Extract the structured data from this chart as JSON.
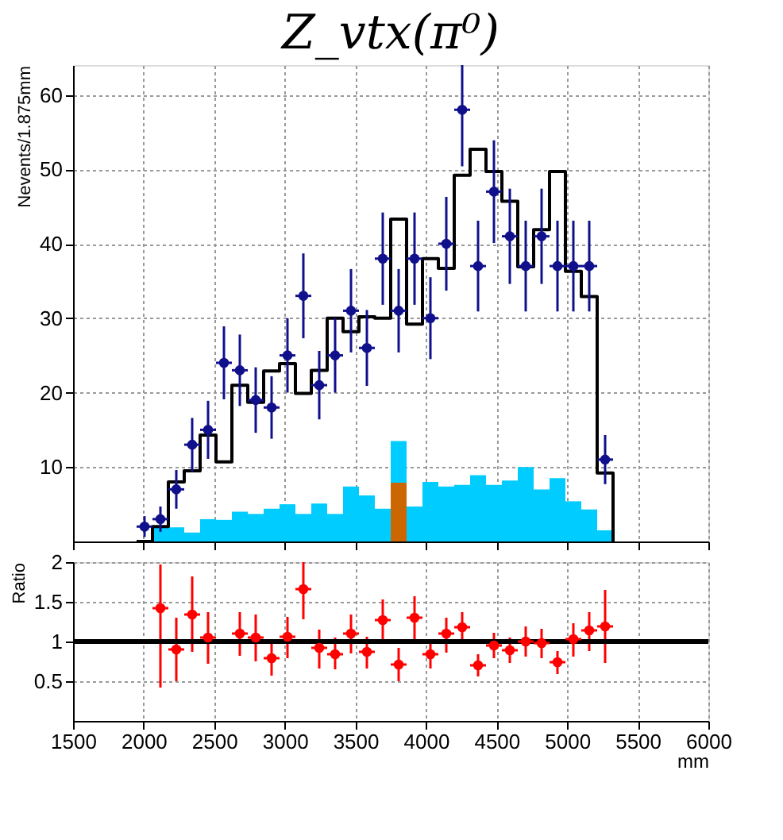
{
  "chart_data": [
    {
      "type": "bar",
      "title": "Z_vtx(π⁰)",
      "ylabel": "Nevents/1.875mm",
      "xlim": [
        1500,
        6000
      ],
      "xticks": [
        1500,
        2000,
        2500,
        3000,
        3500,
        4000,
        4500,
        5000,
        5500,
        6000
      ],
      "ylim": [
        0,
        64
      ],
      "yticks": [
        10,
        20,
        30,
        40,
        50,
        60
      ],
      "grid": true,
      "tick_labels": "y",
      "series": [
        {
          "type": "bar",
          "color": "#cc6600",
          "x": [
            3806.25
          ],
          "values": [
            7.9
          ]
        },
        {
          "type": "bar",
          "color": "#00ccff",
          "base": [
            0,
            0,
            0,
            0,
            0,
            0,
            0,
            0,
            0,
            0,
            0,
            0,
            0,
            0,
            0,
            7.9,
            0,
            0,
            0,
            0,
            0,
            0,
            0,
            0,
            0,
            0,
            0,
            0,
            0
          ],
          "x": [
            2118.75,
            2231.25,
            2343.75,
            2456.25,
            2568.75,
            2681.25,
            2793.75,
            2906.25,
            3018.75,
            3131.25,
            3243.75,
            3356.25,
            3468.75,
            3581.25,
            3693.75,
            3806.25,
            3918.75,
            4031.25,
            4143.75,
            4256.25,
            4368.75,
            4481.25,
            4593.75,
            4706.25,
            4818.75,
            4931.25,
            5043.75,
            5156.25,
            5268.75
          ],
          "values": [
            1.9,
            1.9,
            1.2,
            3.0,
            2.9,
            4.0,
            3.7,
            4.4,
            5.0,
            3.7,
            5.1,
            3.7,
            7.4,
            6.2,
            4.4,
            5.6,
            4.7,
            8.0,
            7.4,
            7.6,
            8.9,
            7.6,
            8.2,
            10.0,
            7.0,
            8.5,
            5.4,
            4.3,
            1.5
          ]
        },
        {
          "type": "step",
          "color": "#000000",
          "x": [
            1950,
            2062.5,
            2175,
            2287.5,
            2400,
            2512.5,
            2625,
            2737.5,
            2850,
            2962.5,
            3075,
            3187.5,
            3300,
            3412.5,
            3525,
            3637.5,
            3750,
            3862.5,
            3975,
            4087.5,
            4200,
            4312.5,
            4425,
            4537.5,
            4650,
            4762.5,
            4875,
            4987.5,
            5100,
            5212.5,
            5325
          ],
          "values": [
            0,
            2,
            8,
            9.5,
            14.3,
            10.7,
            21,
            18.7,
            22.9,
            23.9,
            19.9,
            23,
            30,
            28.2,
            30.2,
            30,
            43.3,
            29.2,
            38,
            36.7,
            49.2,
            52.7,
            49.7,
            45.7,
            36.9,
            41.9,
            49.7,
            36.3,
            32.9,
            9.2,
            0
          ]
        },
        {
          "type": "scatter",
          "color": "#10108c",
          "marker": "circle",
          "x": [
            2006.25,
            2118.75,
            2231.25,
            2343.75,
            2456.25,
            2568.75,
            2681.25,
            2793.75,
            2906.25,
            3018.75,
            3131.25,
            3243.75,
            3356.25,
            3468.75,
            3581.25,
            3693.75,
            3806.25,
            3918.75,
            4031.25,
            4143.75,
            4256.25,
            4368.75,
            4481.25,
            4593.75,
            4706.25,
            4818.75,
            4931.25,
            5043.75,
            5156.25,
            5268.75
          ],
          "values": [
            2,
            3,
            7,
            13,
            15,
            24,
            23,
            19,
            18,
            25,
            33,
            21,
            25,
            31,
            26,
            38,
            31,
            38,
            30,
            40,
            58,
            37,
            47,
            41,
            37,
            41,
            37,
            37,
            37,
            11
          ],
          "errors": [
            1.4,
            1.7,
            2.6,
            3.6,
            3.9,
            4.9,
            4.8,
            4.4,
            4.2,
            5,
            5.7,
            4.6,
            5,
            5.6,
            5.1,
            6.2,
            5.6,
            6.2,
            5.5,
            6.3,
            [
              50.4,
              64
            ],
            6.1,
            6.9,
            6.4,
            6.1,
            6.4,
            6.1,
            6.1,
            6.1,
            3.3
          ],
          "xerrors": [
            56.25,
            56.25,
            56.25,
            56.25,
            56.25,
            56.25,
            56.25,
            56.25,
            56.25,
            56.25,
            56.25,
            56.25,
            56.25,
            56.25,
            56.25,
            56.25,
            56.25,
            56.25,
            56.25,
            56.25,
            56.25,
            56.25,
            56.25,
            56.25,
            56.25,
            56.25,
            56.25,
            56.25,
            56.25,
            56.25
          ]
        }
      ]
    },
    {
      "type": "scatter",
      "xlabel": "mm",
      "ylabel": "Ratio",
      "xlim": [
        1500,
        6000
      ],
      "xticks": [
        1500,
        2000,
        2500,
        3000,
        3500,
        4000,
        4500,
        5000,
        5500,
        6000
      ],
      "ylim": [
        0,
        2
      ],
      "yticks": [
        0.5,
        1,
        1.5,
        2
      ],
      "grid": true,
      "marker": "circle",
      "ref_lines": [
        {
          "axis": "y",
          "value": 1,
          "color": "#000000"
        }
      ],
      "series": [
        {
          "color": "#ff0000",
          "x": [
            2118.75,
            2231.25,
            2343.75,
            2456.25,
            2681.25,
            2793.75,
            2906.25,
            3018.75,
            3131.25,
            3243.75,
            3356.25,
            3468.75,
            3581.25,
            3693.75,
            3806.25,
            3918.75,
            4031.25,
            4143.75,
            4256.25,
            4368.75,
            4481.25,
            4593.75,
            4706.25,
            4818.75,
            4931.25,
            5043.75,
            5156.25,
            5268.75
          ],
          "values": [
            1.42,
            0.9,
            1.34,
            1.05,
            1.1,
            1.05,
            0.79,
            1.06,
            1.66,
            0.92,
            0.84,
            1.1,
            0.87,
            1.27,
            0.71,
            1.3,
            0.84,
            1.1,
            1.18,
            0.7,
            0.95,
            0.89,
            1.0,
            0.98,
            0.74,
            1.03,
            1.14,
            1.19
          ],
          "errors": [
            [
              0.42,
              1.97
            ],
            [
              0.5,
              1.3
            ],
            [
              0.87,
              1.82
            ],
            [
              0.72,
              1.37
            ],
            [
              0.82,
              1.37
            ],
            [
              0.75,
              1.34
            ],
            [
              0.57,
              1.0
            ],
            [
              0.79,
              1.31
            ],
            [
              1.28,
              2.0
            ],
            [
              0.66,
              1.15
            ],
            [
              0.65,
              1.05
            ],
            [
              0.85,
              1.34
            ],
            [
              0.66,
              1.06
            ],
            [
              1.01,
              1.53
            ],
            [
              0.5,
              0.92
            ],
            [
              1.02,
              1.57
            ],
            [
              0.66,
              1.0
            ],
            [
              0.86,
              1.3
            ],
            [
              1.0,
              1.37
            ],
            [
              0.56,
              0.84
            ],
            [
              0.79,
              1.11
            ],
            [
              0.73,
              1.05
            ],
            [
              0.81,
              1.19
            ],
            [
              0.79,
              1.16
            ],
            [
              0.59,
              0.88
            ],
            [
              0.81,
              1.23
            ],
            [
              0.88,
              1.37
            ],
            [
              0.73,
              1.65
            ]
          ],
          "xerrors": [
            56.25,
            56.25,
            56.25,
            56.25,
            56.25,
            56.25,
            56.25,
            56.25,
            56.25,
            56.25,
            56.25,
            56.25,
            56.25,
            56.25,
            56.25,
            56.25,
            56.25,
            56.25,
            56.25,
            56.25,
            56.25,
            56.25,
            56.25,
            56.25,
            56.25,
            56.25,
            56.25,
            56.25
          ]
        }
      ]
    }
  ]
}
